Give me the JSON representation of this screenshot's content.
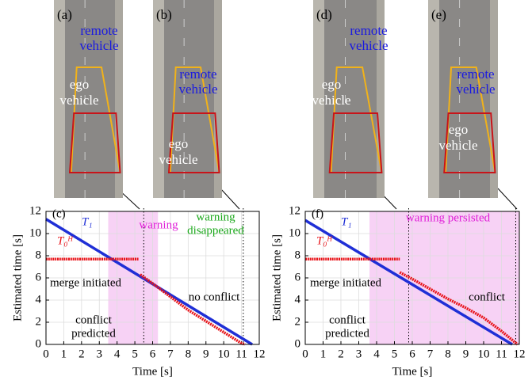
{
  "photos": [
    {
      "label": "(a)",
      "remote": [
        "remote",
        "vehicle"
      ],
      "ego": [
        "ego",
        "vehicle"
      ]
    },
    {
      "label": "(b)",
      "remote": [
        "remote",
        "vehicle"
      ],
      "ego": [
        "ego",
        "vehicle"
      ]
    },
    {
      "label": "(d)",
      "remote": [
        "remote",
        "vehicle"
      ],
      "ego": [
        "ego",
        "vehicle"
      ]
    },
    {
      "label": "(e)",
      "remote": [
        "remote",
        "vehicle"
      ],
      "ego": [
        "ego",
        "vehicle"
      ]
    }
  ],
  "chart_data": [
    {
      "type": "line",
      "label": "(c)",
      "xlabel": "Time [s]",
      "ylabel": "Estimated time [s]",
      "xlim": [
        0,
        12
      ],
      "ylim": [
        0,
        12
      ],
      "xticks": [
        0,
        1,
        2,
        3,
        4,
        5,
        6,
        7,
        8,
        9,
        10,
        11,
        12
      ],
      "yticks": [
        0,
        2,
        4,
        6,
        8,
        10,
        12
      ],
      "grid": true,
      "shade": [
        3.5,
        6.3
      ],
      "shade_color": "#f7d2f5",
      "vlines": [
        5.5,
        11.1
      ],
      "series": [
        {
          "name": "T₁",
          "color": "#1f2fd6",
          "x": [
            0,
            11.6
          ],
          "values": [
            11.3,
            0
          ]
        },
        {
          "name": "T₀ᴴ",
          "color": "#e8141a",
          "x": [
            0,
            5.2
          ],
          "values": [
            7.7,
            7.7
          ]
        },
        {
          "color": "#e8141a",
          "dashed": true,
          "x": [
            5.3,
            6,
            7,
            8,
            9,
            10,
            11,
            11.2
          ],
          "values": [
            6.3,
            5.5,
            4.3,
            3.1,
            2.1,
            1.1,
            0.1,
            0
          ]
        }
      ],
      "annotations": [
        {
          "lines": [
            "warning"
          ],
          "color": "#e020d8"
        },
        {
          "lines": [
            "warning",
            "disappeared"
          ],
          "color": "#1aa81a"
        },
        {
          "lines": [
            "merge initiated"
          ],
          "color": "#000000"
        },
        {
          "lines": [
            "no conflict"
          ],
          "color": "#000000"
        },
        {
          "lines": [
            "conflict",
            "predicted"
          ],
          "color": "#000000"
        }
      ]
    },
    {
      "type": "line",
      "label": "(f)",
      "xlabel": "Time [s]",
      "ylabel": "Estimated time [s]",
      "xlim": [
        0,
        12
      ],
      "ylim": [
        0,
        12
      ],
      "xticks": [
        0,
        1,
        2,
        3,
        4,
        5,
        6,
        7,
        8,
        9,
        10,
        11,
        12
      ],
      "yticks": [
        0,
        2,
        4,
        6,
        8,
        10,
        12
      ],
      "grid": true,
      "shade": [
        3.6,
        12
      ],
      "shade_color": "#f7d2f5",
      "vlines": [
        5.8,
        11.8
      ],
      "series": [
        {
          "name": "T₁",
          "color": "#1f2fd6",
          "x": [
            0,
            11.6
          ],
          "values": [
            11.2,
            0
          ]
        },
        {
          "name": "T₀ᴴ",
          "color": "#e8141a",
          "x": [
            0,
            5.3
          ],
          "values": [
            7.7,
            7.7
          ]
        },
        {
          "color": "#e8141a",
          "dashed": true,
          "x": [
            5.3,
            6,
            7,
            8,
            9,
            10,
            11,
            11.9
          ],
          "values": [
            6.5,
            5.9,
            5.0,
            4.1,
            3.3,
            2.4,
            1.2,
            0
          ]
        }
      ],
      "annotations": [
        {
          "lines": [
            "warning persisted"
          ],
          "color": "#e020d8"
        },
        {
          "lines": [
            "merge initiated"
          ],
          "color": "#000000"
        },
        {
          "lines": [
            "conflict"
          ],
          "color": "#000000"
        },
        {
          "lines": [
            "conflict",
            "predicted"
          ],
          "color": "#000000"
        }
      ]
    }
  ]
}
